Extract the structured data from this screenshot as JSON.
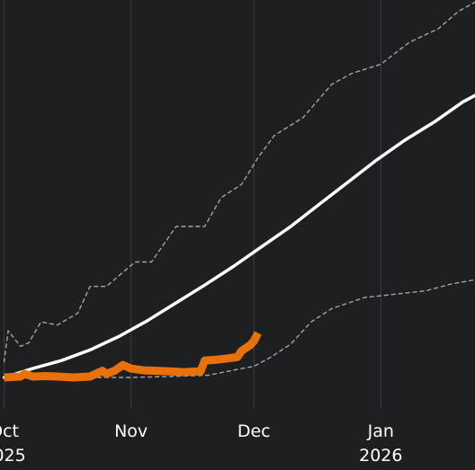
{
  "colors": {
    "background": "#1e1f21",
    "grid": "#3c3d40",
    "trend": "#ffffff",
    "band": "#bbbbbb",
    "actual": "#e8710a"
  },
  "chart_data": {
    "type": "line",
    "title": "",
    "xlabel": "",
    "ylabel": "",
    "grid": "vertical lines at month starts",
    "legend": "none",
    "x_ticks": [
      {
        "date": "2025-10-01",
        "month": "Oct",
        "year": "2025"
      },
      {
        "date": "2025-11-01",
        "month": "Nov",
        "year": ""
      },
      {
        "date": "2025-12-01",
        "month": "Dec",
        "year": ""
      },
      {
        "date": "2026-01-01",
        "month": "Jan",
        "year": "2026"
      }
    ],
    "xlim": [
      "2025-09-30",
      "2026-01-24"
    ],
    "ylim": [
      -1.5,
      8.5
    ],
    "series": [
      {
        "role": "trend",
        "style": "solid",
        "color": "#ffffff",
        "x": [
          "2025-10-01",
          "2025-10-08",
          "2025-10-15",
          "2025-10-22",
          "2025-10-29",
          "2025-11-05",
          "2025-11-12",
          "2025-11-19",
          "2025-11-26",
          "2025-12-03",
          "2025-12-10",
          "2025-12-17",
          "2025-12-24",
          "2025-12-31",
          "2026-01-07",
          "2026-01-14",
          "2026-01-21",
          "2026-01-24"
        ],
        "y": [
          0,
          0.2,
          0.38,
          0.62,
          0.92,
          1.28,
          1.68,
          2.08,
          2.5,
          2.95,
          3.4,
          3.9,
          4.4,
          4.9,
          5.35,
          5.75,
          6.2,
          6.35
        ]
      },
      {
        "role": "upper-band",
        "style": "dashed",
        "color": "#bbbbbb",
        "x": [
          "2025-10-01",
          "2025-10-02",
          "2025-10-05",
          "2025-10-07",
          "2025-10-10",
          "2025-10-14",
          "2025-10-19",
          "2025-10-22",
          "2025-10-26",
          "2025-11-02",
          "2025-11-06",
          "2025-11-12",
          "2025-11-19",
          "2025-11-23",
          "2025-11-28",
          "2025-12-02",
          "2025-12-06",
          "2025-12-13",
          "2025-12-20",
          "2025-12-25",
          "2026-01-01",
          "2026-01-08",
          "2026-01-15",
          "2026-01-20",
          "2026-01-24"
        ],
        "y": [
          0.35,
          1.05,
          0.7,
          0.78,
          1.25,
          1.18,
          1.45,
          2.05,
          2.05,
          2.6,
          2.6,
          3.4,
          3.4,
          4.05,
          4.35,
          4.95,
          5.45,
          5.85,
          6.6,
          6.85,
          7.05,
          7.55,
          7.85,
          8.25,
          8.45
        ]
      },
      {
        "role": "lower-band",
        "style": "dashed",
        "color": "#bbbbbb",
        "x": [
          "2025-10-01",
          "2025-10-10",
          "2025-10-20",
          "2025-11-01",
          "2025-11-10",
          "2025-11-20",
          "2025-11-28",
          "2025-12-01",
          "2025-12-05",
          "2025-12-10",
          "2025-12-15",
          "2025-12-20",
          "2025-12-28",
          "2026-01-05",
          "2026-01-12",
          "2026-01-18",
          "2026-01-24"
        ],
        "y": [
          0,
          -0.02,
          0,
          0,
          0.02,
          0.05,
          0.2,
          0.25,
          0.45,
          0.75,
          1.25,
          1.55,
          1.8,
          1.88,
          1.95,
          2.1,
          2.2
        ]
      },
      {
        "role": "actual",
        "style": "solid",
        "color": "#e8710a",
        "x": [
          "2025-10-01",
          "2025-10-05",
          "2025-10-06",
          "2025-10-08",
          "2025-10-11",
          "2025-10-14",
          "2025-10-18",
          "2025-10-22",
          "2025-10-25",
          "2025-10-26",
          "2025-10-28",
          "2025-10-30",
          "2025-11-01",
          "2025-11-04",
          "2025-11-07",
          "2025-11-10",
          "2025-11-14",
          "2025-11-18",
          "2025-11-19",
          "2025-11-22",
          "2025-11-24",
          "2025-11-27",
          "2025-11-28",
          "2025-11-30",
          "2025-12-01",
          "2025-12-02"
        ],
        "y": [
          0,
          0.02,
          0.08,
          0.02,
          0.03,
          0.02,
          0,
          0.02,
          0.15,
          0.08,
          0.15,
          0.28,
          0.2,
          0.16,
          0.15,
          0.14,
          0.12,
          0.14,
          0.38,
          0.4,
          0.42,
          0.46,
          0.6,
          0.72,
          0.82,
          1.0
        ]
      }
    ]
  }
}
